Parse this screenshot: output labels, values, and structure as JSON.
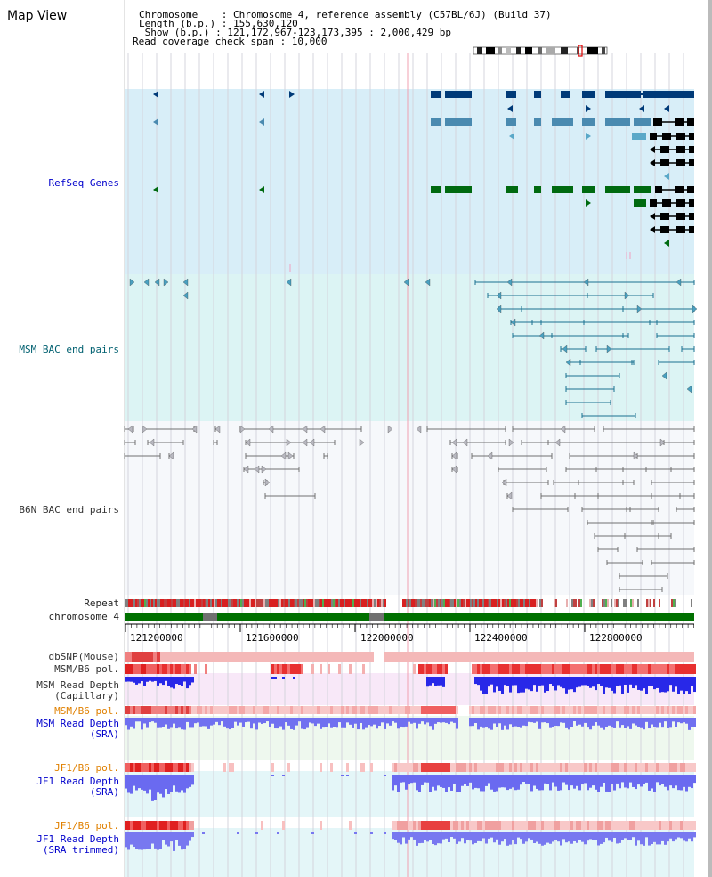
{
  "title": "Map View",
  "info": {
    "line1": "Chromosome    : Chromosome 4, reference assembly (C57BL/6J) (Build 37)",
    "line2": "Length (b.p.) : 155,630,120",
    "line3": " Show (b.p.) : 121,172,967-123,173,395 : 2,000,429 bp",
    "line4": "Read coverage check span : 10,000"
  },
  "tracks": {
    "refseq": "RefSeq Genes",
    "msm_bac": "MSM BAC end pairs",
    "b6n_bac": "B6N BAC end pairs",
    "repeat": "Repeat",
    "chromosome": "chromosome 4",
    "dbsnp": "dbSNP(Mouse)",
    "msm_b6_pol_1": "MSM/B6 pol.",
    "msm_read_depth_cap_1": "MSM Read Depth",
    "msm_read_depth_cap_2": "(Capillary)",
    "msm_b6_pol_2": "MSM/B6 pol.",
    "msm_read_depth_sra_1": "MSM Read Depth",
    "msm_read_depth_sra_2": "(SRA)",
    "jf1_b6_pol_1": "JF1/B6 pol.",
    "jf1_read_depth_sra_1": "JF1 Read Depth",
    "jf1_read_depth_sra_2": "(SRA)",
    "jf1_b6_pol_2": "JF1/B6 pol.",
    "jf1_read_depth_trim_1": "JF1 Read Depth",
    "jf1_read_depth_trim_2": "(SRA trimmed)"
  },
  "axis_ticks": [
    "121200000",
    "121600000",
    "122000000",
    "122400000",
    "122800000"
  ],
  "colors": {
    "refseq_bg": "#d8eef8",
    "msm_bg": "#dcf4f4",
    "b6n_bg": "#f6f8fb",
    "chrom_green": "#007000",
    "gene_dark": "#003a78",
    "gene_mid": "#4a8ab0",
    "gene_light": "#5aa8c8",
    "gene_green": "#006a10",
    "gene_black": "#000000",
    "bac_teal": "#1a7090",
    "bac_gray": "#707070",
    "pol_red": "#e03030",
    "depth_blue": "#3030e0"
  }
}
